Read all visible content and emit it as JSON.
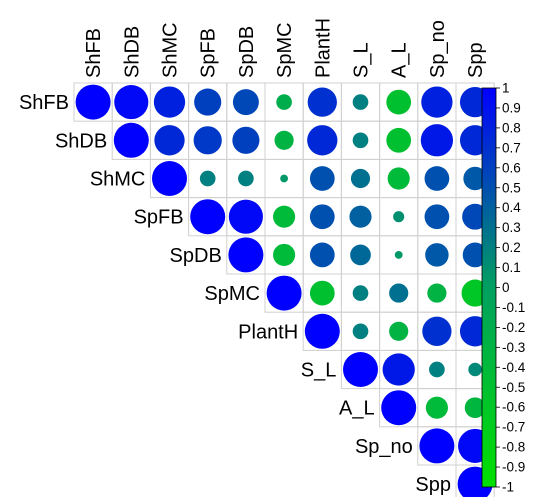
{
  "chart_data": {
    "type": "heatmap",
    "subtype": "correlation-circle-upper-triangle",
    "variables": [
      "ShFB",
      "ShDB",
      "ShMC",
      "SpFB",
      "SpDB",
      "SpMC",
      "PlantH",
      "S_L",
      "A_L",
      "Sp_no",
      "Spp"
    ],
    "matrix": [
      [
        1,
        0.95,
        0.8,
        0.6,
        0.55,
        -0.2,
        0.7,
        0.2,
        -0.5,
        0.8,
        0.75
      ],
      [
        0.95,
        1,
        0.75,
        0.65,
        0.6,
        -0.3,
        0.75,
        0.2,
        -0.5,
        0.85,
        0.75
      ],
      [
        0.8,
        0.75,
        1,
        0.2,
        0.2,
        0.05,
        0.5,
        0.3,
        -0.4,
        0.5,
        0.45
      ],
      [
        0.6,
        0.65,
        0.2,
        1,
        0.95,
        -0.4,
        0.5,
        0.4,
        0.1,
        0.5,
        0.55
      ],
      [
        0.55,
        0.6,
        0.2,
        0.95,
        1,
        -0.4,
        0.5,
        0.35,
        0.05,
        0.45,
        0.5
      ],
      [
        -0.2,
        -0.3,
        0.05,
        -0.4,
        -0.4,
        1,
        -0.5,
        0.2,
        0.3,
        -0.3,
        -0.6
      ],
      [
        0.7,
        0.75,
        0.5,
        0.5,
        0.5,
        -0.5,
        1,
        0.2,
        -0.3,
        0.7,
        0.75
      ],
      [
        0.2,
        0.2,
        0.3,
        0.4,
        0.35,
        0.2,
        0.2,
        1,
        0.85,
        0.2,
        0.15
      ],
      [
        -0.5,
        -0.5,
        -0.4,
        0.1,
        0.05,
        0.3,
        -0.3,
        0.85,
        1,
        -0.4,
        -0.35
      ],
      [
        0.8,
        0.85,
        0.5,
        0.5,
        0.45,
        -0.3,
        0.7,
        0.2,
        -0.4,
        1,
        0.95
      ],
      [
        0.75,
        0.75,
        0.45,
        0.55,
        0.5,
        -0.6,
        0.75,
        0.15,
        -0.35,
        0.95,
        1
      ]
    ],
    "color_scale": {
      "min": -1,
      "max": 1,
      "ticks": [
        1,
        0.9,
        0.8,
        0.7,
        0.6,
        0.5,
        0.4,
        0.3,
        0.2,
        0.1,
        0,
        -0.1,
        -0.2,
        -0.3,
        -0.4,
        -0.5,
        -0.6,
        -0.7,
        -0.8,
        -0.9,
        -1
      ],
      "colors": {
        "negative": "#00e000",
        "zero": "#00a060",
        "positive": "#0000ff"
      }
    },
    "colorbar_placement": "right",
    "grid": true,
    "legend_placement": "right"
  }
}
